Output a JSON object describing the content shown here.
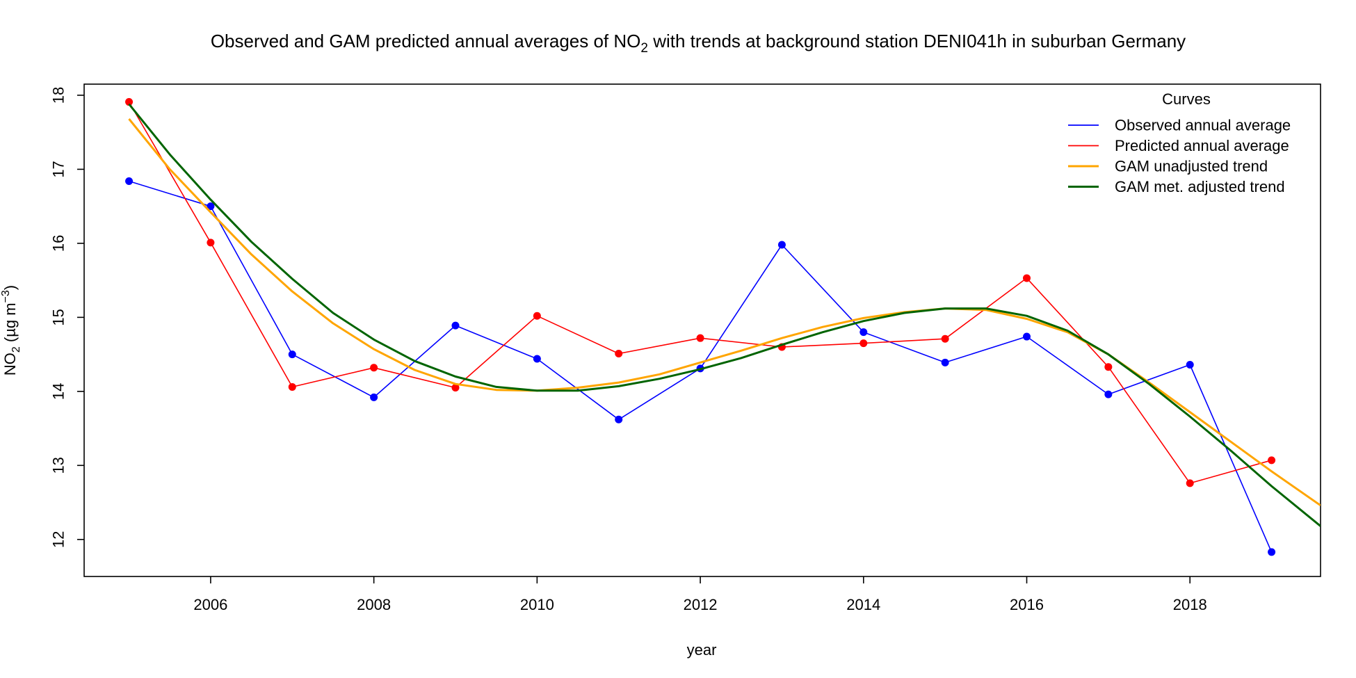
{
  "chart_data": {
    "type": "line",
    "title_pre": "Observed and GAM predicted annual averages of NO",
    "title_sub": "2",
    "title_post": " with trends at background station DENI041h in suburban Germany",
    "xlabel": "year",
    "ylabel_pre": "NO",
    "ylabel_sub": "2",
    "ylabel_unit_pre": " (µg m",
    "ylabel_sup": "−3",
    "ylabel_unit_post": ")",
    "xlim": [
      2004.45,
      2019.6
    ],
    "ylim": [
      11.5,
      18.15
    ],
    "x_ticks": [
      2006,
      2008,
      2010,
      2012,
      2014,
      2016,
      2018
    ],
    "x_tick_labels": [
      "2006",
      "2008",
      "2010",
      "2012",
      "2014",
      "2016",
      "2018"
    ],
    "y_ticks": [
      12,
      13,
      14,
      15,
      16,
      17,
      18
    ],
    "y_tick_labels": [
      "12",
      "13",
      "14",
      "15",
      "16",
      "17",
      "18"
    ],
    "grid": false,
    "legend": {
      "title": "Curves",
      "position": "top-right",
      "entries": [
        "Observed annual average",
        "Predicted annual average",
        "GAM unadjusted trend",
        "GAM met. adjusted trend"
      ]
    },
    "series": [
      {
        "name": "Observed annual average",
        "color": "#0000ff",
        "markers": true,
        "x": [
          2005,
          2006,
          2007,
          2008,
          2009,
          2010,
          2011,
          2012,
          2013,
          2014,
          2015,
          2016,
          2017,
          2018,
          2019
        ],
        "y": [
          16.84,
          16.5,
          14.5,
          13.92,
          14.89,
          14.44,
          13.62,
          14.31,
          15.98,
          14.8,
          14.39,
          14.74,
          13.96,
          14.36,
          11.83
        ]
      },
      {
        "name": "Predicted annual average",
        "color": "#ff0000",
        "markers": true,
        "x": [
          2005,
          2006,
          2007,
          2008,
          2009,
          2010,
          2011,
          2012,
          2013,
          2014,
          2015,
          2016,
          2017,
          2018,
          2019
        ],
        "y": [
          17.91,
          16.01,
          14.06,
          14.32,
          14.05,
          15.02,
          14.51,
          14.72,
          14.6,
          14.65,
          14.71,
          15.53,
          14.33,
          12.76,
          13.07
        ]
      },
      {
        "name": "GAM unadjusted trend",
        "color": "#ffa500",
        "markers": false,
        "x": [
          2005,
          2005.5,
          2006,
          2006.5,
          2007,
          2007.5,
          2008,
          2008.5,
          2009,
          2009.5,
          2010,
          2010.5,
          2011,
          2011.5,
          2012,
          2012.5,
          2013,
          2013.5,
          2014,
          2014.5,
          2015,
          2015.5,
          2016,
          2016.5,
          2017,
          2017.5,
          2018,
          2018.5,
          2019,
          2019.6
        ],
        "y": [
          17.68,
          17.0,
          16.42,
          15.85,
          15.35,
          14.92,
          14.57,
          14.29,
          14.1,
          14.02,
          14.01,
          14.05,
          14.12,
          14.23,
          14.39,
          14.55,
          14.72,
          14.87,
          14.99,
          15.07,
          15.12,
          15.1,
          14.98,
          14.8,
          14.5,
          14.12,
          13.72,
          13.32,
          12.92,
          12.46
        ]
      },
      {
        "name": "GAM met. adjusted trend",
        "color": "#006400",
        "markers": false,
        "x": [
          2005,
          2005.5,
          2006,
          2006.5,
          2007,
          2007.5,
          2008,
          2008.5,
          2009,
          2009.5,
          2010,
          2010.5,
          2011,
          2011.5,
          2012,
          2012.5,
          2013,
          2013.5,
          2014,
          2014.5,
          2015,
          2015.5,
          2016,
          2016.5,
          2017,
          2017.5,
          2018,
          2018.5,
          2019,
          2019.6
        ],
        "y": [
          17.88,
          17.2,
          16.59,
          16.02,
          15.52,
          15.06,
          14.7,
          14.41,
          14.2,
          14.06,
          14.01,
          14.01,
          14.07,
          14.17,
          14.3,
          14.45,
          14.63,
          14.8,
          14.95,
          15.06,
          15.12,
          15.12,
          15.02,
          14.82,
          14.5,
          14.1,
          13.66,
          13.2,
          12.72,
          12.18
        ]
      }
    ]
  }
}
